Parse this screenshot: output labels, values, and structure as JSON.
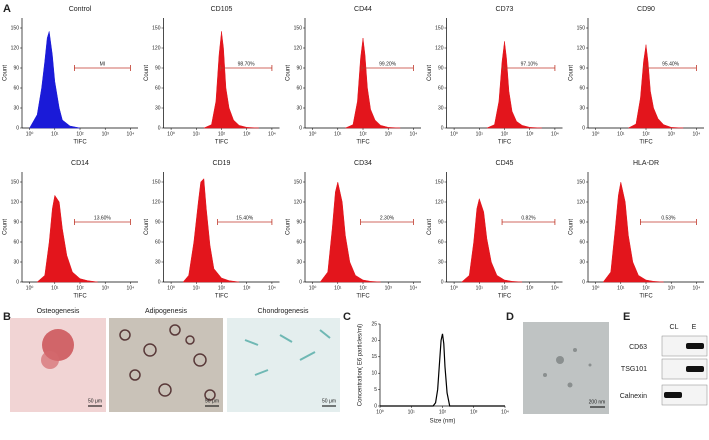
{
  "panel_labels": [
    "A",
    "B",
    "C",
    "D",
    "E"
  ],
  "chart_data": [
    {
      "type": "area",
      "title": "Control",
      "color": "#1a1ad8",
      "xlog": true,
      "x_label": "TIFC",
      "y_label": "Count",
      "x": [
        1,
        2,
        3,
        4,
        5,
        6,
        8,
        10,
        15,
        20,
        40,
        100
      ],
      "values": [
        0,
        20,
        60,
        100,
        135,
        145,
        110,
        70,
        30,
        12,
        3,
        0
      ],
      "xlim": [
        0.5,
        20000
      ],
      "ylim": [
        0,
        165
      ],
      "xticks": [
        {
          "value": 1,
          "label": "10⁰"
        },
        {
          "value": 10,
          "label": "10¹"
        },
        {
          "value": 100,
          "label": "10²"
        },
        {
          "value": 1000,
          "label": "10³"
        },
        {
          "value": 10000,
          "label": "10⁴"
        }
      ],
      "yticks": [
        0,
        30,
        60,
        90,
        120,
        150
      ],
      "gate": {
        "label": "MI",
        "x": [
          60,
          10000
        ],
        "y": 90
      }
    },
    {
      "type": "area",
      "title": "CD105",
      "color": "#e3151c",
      "xlog": true,
      "x_label": "TIFC",
      "y_label": "Count",
      "x": [
        20,
        40,
        60,
        80,
        100,
        120,
        150,
        200,
        300,
        500,
        1000,
        3000
      ],
      "values": [
        0,
        5,
        40,
        110,
        145,
        120,
        60,
        30,
        12,
        4,
        1,
        0
      ],
      "xlim": [
        0.5,
        20000
      ],
      "ylim": [
        0,
        165
      ],
      "xticks": [
        {
          "value": 1,
          "label": "10⁰"
        },
        {
          "value": 10,
          "label": "10¹"
        },
        {
          "value": 100,
          "label": "10²"
        },
        {
          "value": 1000,
          "label": "10³"
        },
        {
          "value": 10000,
          "label": "10⁴"
        }
      ],
      "yticks": [
        0,
        30,
        60,
        90,
        120,
        150
      ],
      "gate": {
        "label": "98.70%",
        "x": [
          90,
          10000
        ],
        "y": 90
      }
    },
    {
      "type": "area",
      "title": "CD44",
      "color": "#e3151c",
      "xlog": true,
      "x_label": "TIFC",
      "y_label": "Count",
      "x": [
        20,
        40,
        60,
        80,
        100,
        120,
        150,
        200,
        300,
        500,
        1000,
        3000
      ],
      "values": [
        0,
        5,
        40,
        105,
        135,
        110,
        60,
        28,
        12,
        4,
        1,
        0
      ],
      "xlim": [
        0.5,
        20000
      ],
      "ylim": [
        0,
        165
      ],
      "xticks": [
        {
          "value": 1,
          "label": "10⁰"
        },
        {
          "value": 10,
          "label": "10¹"
        },
        {
          "value": 100,
          "label": "10²"
        },
        {
          "value": 1000,
          "label": "10³"
        },
        {
          "value": 10000,
          "label": "10⁴"
        }
      ],
      "yticks": [
        0,
        30,
        60,
        90,
        120,
        150
      ],
      "gate": {
        "label": "99.20%",
        "x": [
          90,
          10000
        ],
        "y": 90
      }
    },
    {
      "type": "area",
      "title": "CD73",
      "color": "#e3151c",
      "xlog": true,
      "x_label": "TIFC",
      "y_label": "Count",
      "x": [
        20,
        40,
        60,
        80,
        100,
        120,
        150,
        200,
        300,
        500,
        1000,
        3000
      ],
      "values": [
        0,
        5,
        40,
        100,
        130,
        105,
        55,
        25,
        10,
        4,
        1,
        0
      ],
      "xlim": [
        0.5,
        20000
      ],
      "ylim": [
        0,
        165
      ],
      "xticks": [
        {
          "value": 1,
          "label": "10⁰"
        },
        {
          "value": 10,
          "label": "10¹"
        },
        {
          "value": 100,
          "label": "10²"
        },
        {
          "value": 1000,
          "label": "10³"
        },
        {
          "value": 10000,
          "label": "10⁴"
        }
      ],
      "yticks": [
        0,
        30,
        60,
        90,
        120,
        150
      ],
      "gate": {
        "label": "97.10%",
        "x": [
          90,
          10000
        ],
        "y": 90
      }
    },
    {
      "type": "area",
      "title": "CD90",
      "color": "#e3151c",
      "xlog": true,
      "x_label": "TIFC",
      "y_label": "Count",
      "x": [
        20,
        40,
        60,
        80,
        100,
        120,
        150,
        200,
        300,
        500,
        1000,
        3000
      ],
      "values": [
        0,
        6,
        45,
        100,
        125,
        100,
        55,
        30,
        14,
        5,
        1,
        0
      ],
      "xlim": [
        0.5,
        20000
      ],
      "ylim": [
        0,
        165
      ],
      "xticks": [
        {
          "value": 1,
          "label": "10⁰"
        },
        {
          "value": 10,
          "label": "10¹"
        },
        {
          "value": 100,
          "label": "10²"
        },
        {
          "value": 1000,
          "label": "10³"
        },
        {
          "value": 10000,
          "label": "10⁴"
        }
      ],
      "yticks": [
        0,
        30,
        60,
        90,
        120,
        150
      ],
      "gate": {
        "label": "95.40%",
        "x": [
          90,
          10000
        ],
        "y": 90
      }
    },
    {
      "type": "area",
      "title": "CD14",
      "color": "#e3151c",
      "xlog": true,
      "x_label": "TIFC",
      "y_label": "Count",
      "x": [
        2,
        4,
        6,
        8,
        10,
        15,
        20,
        30,
        50,
        100,
        200,
        500
      ],
      "values": [
        0,
        10,
        60,
        110,
        130,
        120,
        80,
        40,
        15,
        5,
        2,
        0
      ],
      "xlim": [
        0.5,
        20000
      ],
      "ylim": [
        0,
        165
      ],
      "xticks": [
        {
          "value": 1,
          "label": "10⁰"
        },
        {
          "value": 10,
          "label": "10¹"
        },
        {
          "value": 100,
          "label": "10²"
        },
        {
          "value": 1000,
          "label": "10³"
        },
        {
          "value": 10000,
          "label": "10⁴"
        }
      ],
      "yticks": [
        0,
        30,
        60,
        90,
        120,
        150
      ],
      "gate": {
        "label": "13.60%",
        "x": [
          60,
          10000
        ],
        "y": 90
      }
    },
    {
      "type": "area",
      "title": "CD19",
      "color": "#e3151c",
      "xlog": true,
      "x_label": "TIFC",
      "y_label": "Count",
      "x": [
        3,
        5,
        8,
        12,
        15,
        20,
        25,
        35,
        50,
        100,
        200,
        500
      ],
      "values": [
        0,
        10,
        60,
        120,
        150,
        155,
        110,
        55,
        20,
        6,
        2,
        0
      ],
      "xlim": [
        0.5,
        20000
      ],
      "ylim": [
        0,
        165
      ],
      "xticks": [
        {
          "value": 1,
          "label": "10⁰"
        },
        {
          "value": 10,
          "label": "10¹"
        },
        {
          "value": 100,
          "label": "10²"
        },
        {
          "value": 1000,
          "label": "10³"
        },
        {
          "value": 10000,
          "label": "10⁴"
        }
      ],
      "yticks": [
        0,
        30,
        60,
        90,
        120,
        150
      ],
      "gate": {
        "label": "15.40%",
        "x": [
          70,
          10000
        ],
        "y": 90
      }
    },
    {
      "type": "area",
      "title": "CD34",
      "color": "#e3151c",
      "xlog": true,
      "x_label": "TIFC",
      "y_label": "Count",
      "x": [
        2,
        4,
        6,
        8,
        10,
        15,
        20,
        30,
        50,
        100,
        200,
        500
      ],
      "values": [
        0,
        15,
        80,
        135,
        150,
        120,
        70,
        30,
        10,
        3,
        1,
        0
      ],
      "xlim": [
        0.5,
        20000
      ],
      "ylim": [
        0,
        165
      ],
      "xticks": [
        {
          "value": 1,
          "label": "10⁰"
        },
        {
          "value": 10,
          "label": "10¹"
        },
        {
          "value": 100,
          "label": "10²"
        },
        {
          "value": 1000,
          "label": "10³"
        },
        {
          "value": 10000,
          "label": "10⁴"
        }
      ],
      "yticks": [
        0,
        30,
        60,
        90,
        120,
        150
      ],
      "gate": {
        "label": "2.30%",
        "x": [
          80,
          10000
        ],
        "y": 90
      }
    },
    {
      "type": "area",
      "title": "CD45",
      "color": "#e3151c",
      "xlog": true,
      "x_label": "TIFC",
      "y_label": "Count",
      "x": [
        2,
        4,
        6,
        8,
        10,
        15,
        20,
        30,
        50,
        100,
        200,
        500
      ],
      "values": [
        0,
        10,
        60,
        110,
        125,
        105,
        65,
        30,
        10,
        3,
        1,
        0
      ],
      "xlim": [
        0.5,
        20000
      ],
      "ylim": [
        0,
        165
      ],
      "xticks": [
        {
          "value": 1,
          "label": "10⁰"
        },
        {
          "value": 10,
          "label": "10¹"
        },
        {
          "value": 100,
          "label": "10²"
        },
        {
          "value": 1000,
          "label": "10³"
        },
        {
          "value": 10000,
          "label": "10⁴"
        }
      ],
      "yticks": [
        0,
        30,
        60,
        90,
        120,
        150
      ],
      "gate": {
        "label": "0.82%",
        "x": [
          80,
          10000
        ],
        "y": 90
      }
    },
    {
      "type": "area",
      "title": "HLA-DR",
      "color": "#e3151c",
      "xlog": true,
      "x_label": "TIFC",
      "y_label": "Count",
      "x": [
        2,
        4,
        6,
        8,
        10,
        15,
        20,
        30,
        50,
        100,
        200,
        500
      ],
      "values": [
        0,
        15,
        80,
        130,
        150,
        120,
        70,
        30,
        10,
        3,
        1,
        0
      ],
      "xlim": [
        0.5,
        20000
      ],
      "ylim": [
        0,
        165
      ],
      "xticks": [
        {
          "value": 1,
          "label": "10⁰"
        },
        {
          "value": 10,
          "label": "10¹"
        },
        {
          "value": 100,
          "label": "10²"
        },
        {
          "value": 1000,
          "label": "10³"
        },
        {
          "value": 10000,
          "label": "10⁴"
        }
      ],
      "yticks": [
        0,
        30,
        60,
        90,
        120,
        150
      ],
      "gate": {
        "label": "0.53%",
        "x": [
          60,
          10000
        ],
        "y": 90
      }
    },
    {
      "type": "line",
      "color": "#000000",
      "xlog": true,
      "x_label": "Size (nm)",
      "y_label": "Concentration( E6 particles/ml)",
      "x": [
        1,
        50,
        60,
        70,
        80,
        90,
        100,
        110,
        120,
        140,
        170,
        10000
      ],
      "values": [
        0,
        0,
        1,
        5,
        13,
        20,
        22,
        19,
        12,
        4,
        0,
        0
      ],
      "xlim": [
        1,
        10000
      ],
      "ylim": [
        0,
        25
      ],
      "xticks": [
        {
          "value": 1,
          "label": "10⁰"
        },
        {
          "value": 10,
          "label": "10¹"
        },
        {
          "value": 100,
          "label": "10²"
        },
        {
          "value": 1000,
          "label": "10³"
        },
        {
          "value": 10000,
          "label": "10⁴"
        }
      ],
      "yticks": [
        0,
        5,
        10,
        15,
        20,
        25
      ]
    }
  ],
  "differentiation": {
    "titles": [
      "Osteogenesis",
      "Adipogenesis",
      "Chondrogenesis"
    ],
    "scale_bar": "50 μm"
  },
  "tem": {
    "scale_bar": "200 nm"
  },
  "western_blot": {
    "lanes": [
      "CL",
      "E"
    ],
    "proteins": [
      "CD63",
      "TSG101",
      "Calnexin"
    ]
  }
}
